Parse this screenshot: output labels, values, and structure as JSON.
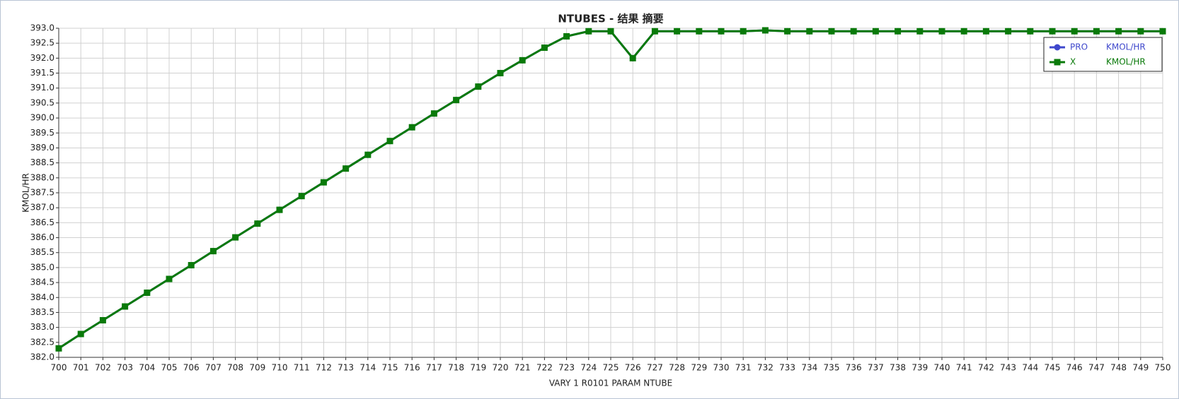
{
  "chart_data": {
    "type": "line",
    "title": "NTUBES - 结果 摘要",
    "x_label": "VARY   1 R0101     PARAM      NTUBE",
    "y_label": "KMOL/HR",
    "x": [
      700,
      701,
      702,
      703,
      704,
      705,
      706,
      707,
      708,
      709,
      710,
      711,
      712,
      713,
      714,
      715,
      716,
      717,
      718,
      719,
      720,
      721,
      722,
      723,
      724,
      725,
      726,
      727,
      728,
      729,
      730,
      731,
      732,
      733,
      734,
      735,
      736,
      737,
      738,
      739,
      740,
      741,
      742,
      743,
      744,
      745,
      746,
      747,
      748,
      749,
      750
    ],
    "series": [
      {
        "name": "PRO",
        "unit": "KMOL/HR",
        "color": "#3f48cc",
        "marker": "circle",
        "values": [
          382.3,
          382.78,
          383.24,
          383.7,
          384.16,
          384.62,
          385.08,
          385.55,
          386.01,
          386.47,
          386.93,
          387.39,
          387.85,
          388.31,
          388.77,
          389.23,
          389.69,
          390.15,
          390.6,
          391.05,
          391.5,
          391.93,
          392.35,
          392.73,
          392.9,
          392.9,
          392.0,
          392.9,
          392.9,
          392.9,
          392.9,
          392.9,
          392.93,
          392.9,
          392.9,
          392.9,
          392.9,
          392.9,
          392.9,
          392.9,
          392.9,
          392.9,
          392.9,
          392.9,
          392.9,
          392.9,
          392.9,
          392.9,
          392.9,
          392.9,
          392.9
        ]
      },
      {
        "name": "X",
        "unit": "KMOL/HR",
        "color": "#0a7a0a",
        "marker": "square",
        "values": [
          382.3,
          382.78,
          383.24,
          383.7,
          384.16,
          384.62,
          385.08,
          385.55,
          386.01,
          386.47,
          386.93,
          387.39,
          387.85,
          388.31,
          388.77,
          389.23,
          389.69,
          390.15,
          390.6,
          391.05,
          391.5,
          391.93,
          392.35,
          392.73,
          392.9,
          392.9,
          392.0,
          392.9,
          392.9,
          392.9,
          392.9,
          392.9,
          392.93,
          392.9,
          392.9,
          392.9,
          392.9,
          392.9,
          392.9,
          392.9,
          392.9,
          392.9,
          392.9,
          392.9,
          392.9,
          392.9,
          392.9,
          392.9,
          392.9,
          392.9,
          392.9
        ]
      }
    ],
    "xlim": [
      700,
      750
    ],
    "xticks": [
      700,
      701,
      702,
      703,
      704,
      705,
      706,
      707,
      708,
      709,
      710,
      711,
      712,
      713,
      714,
      715,
      716,
      717,
      718,
      719,
      720,
      721,
      722,
      723,
      724,
      725,
      726,
      727,
      728,
      729,
      730,
      731,
      732,
      733,
      734,
      735,
      736,
      737,
      738,
      739,
      740,
      741,
      742,
      743,
      744,
      745,
      746,
      747,
      748,
      749,
      750
    ],
    "ylim": [
      382,
      393
    ],
    "yticks": [
      {
        "value": 382,
        "label": "382.0"
      },
      {
        "value": 382.5,
        "label": "382.5"
      },
      {
        "value": 383,
        "label": "383.0"
      },
      {
        "value": 383.5,
        "label": "383.5"
      },
      {
        "value": 384,
        "label": "384.0"
      },
      {
        "value": 384.5,
        "label": "384.5"
      },
      {
        "value": 385,
        "label": "385.0"
      },
      {
        "value": 385.5,
        "label": "385.5"
      },
      {
        "value": 386,
        "label": "386.0"
      },
      {
        "value": 386.5,
        "label": "386.5"
      },
      {
        "value": 387,
        "label": "387.0"
      },
      {
        "value": 387.5,
        "label": "387.5"
      },
      {
        "value": 388,
        "label": "388.0"
      },
      {
        "value": 388.5,
        "label": "388.5"
      },
      {
        "value": 389,
        "label": "389.0"
      },
      {
        "value": 389.5,
        "label": "389.5"
      },
      {
        "value": 390,
        "label": "390.0"
      },
      {
        "value": 390.5,
        "label": "390.5"
      },
      {
        "value": 391,
        "label": "391.0"
      },
      {
        "value": 391.5,
        "label": "391.5"
      },
      {
        "value": 392,
        "label": "392.0"
      },
      {
        "value": 392.5,
        "label": "392.5"
      },
      {
        "value": 393,
        "label": "393.0"
      }
    ],
    "grid": true,
    "legend": "upper right"
  }
}
